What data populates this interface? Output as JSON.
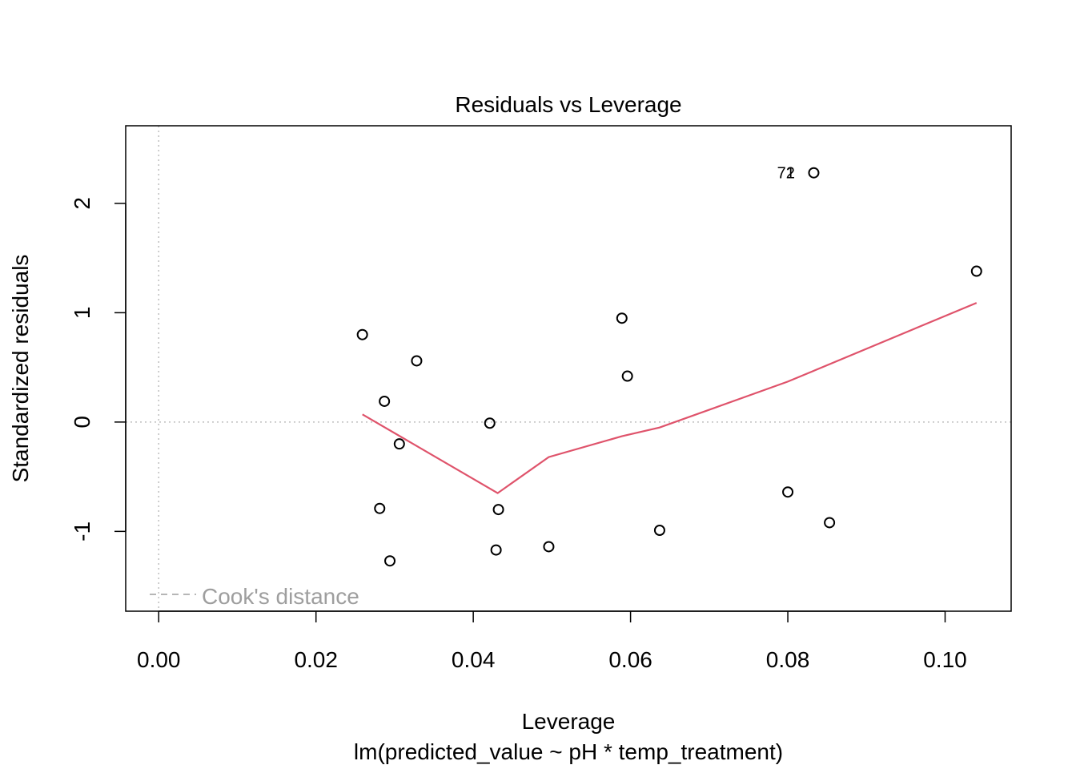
{
  "chart_data": {
    "type": "scatter",
    "title": "Residuals vs Leverage",
    "xlabel": "Leverage",
    "subtitle": "lm(predicted_value ~ pH * temp_treatment)",
    "ylabel": "Standardized residuals",
    "xlim": [
      -0.0042,
      0.1084
    ],
    "ylim": [
      -1.73,
      2.71
    ],
    "x_ticks": [
      {
        "value": 0.0,
        "label": "0.00"
      },
      {
        "value": 0.02,
        "label": "0.02"
      },
      {
        "value": 0.04,
        "label": "0.04"
      },
      {
        "value": 0.06,
        "label": "0.06"
      },
      {
        "value": 0.08,
        "label": "0.08"
      },
      {
        "value": 0.1,
        "label": "0.10"
      }
    ],
    "y_ticks": [
      {
        "value": -1,
        "label": "-1"
      },
      {
        "value": 0,
        "label": "0"
      },
      {
        "value": 1,
        "label": "1"
      },
      {
        "value": 2,
        "label": "2"
      }
    ],
    "points": [
      {
        "x": 0.0259,
        "y": 0.8
      },
      {
        "x": 0.0287,
        "y": 0.19
      },
      {
        "x": 0.0328,
        "y": 0.56
      },
      {
        "x": 0.0306,
        "y": -0.2
      },
      {
        "x": 0.0281,
        "y": -0.79
      },
      {
        "x": 0.0294,
        "y": -1.27
      },
      {
        "x": 0.0421,
        "y": -0.01
      },
      {
        "x": 0.0432,
        "y": -0.8
      },
      {
        "x": 0.0429,
        "y": -1.17
      },
      {
        "x": 0.0496,
        "y": -1.14
      },
      {
        "x": 0.0589,
        "y": 0.95
      },
      {
        "x": 0.0596,
        "y": 0.42
      },
      {
        "x": 0.0637,
        "y": -0.99
      },
      {
        "x": 0.08,
        "y": -0.64
      },
      {
        "x": 0.0833,
        "y": 2.28
      },
      {
        "x": 0.0853,
        "y": -0.92
      },
      {
        "x": 0.104,
        "y": 1.38
      }
    ],
    "point_labels": [
      {
        "x": 0.0809,
        "y": 2.28,
        "label": "72"
      },
      {
        "x": 0.0809,
        "y": 2.28,
        "label": "1"
      }
    ],
    "smooth": {
      "name": "smooth",
      "color": "#DF536B",
      "points": [
        {
          "x": 0.0259,
          "y": 0.07
        },
        {
          "x": 0.0431,
          "y": -0.65
        },
        {
          "x": 0.0496,
          "y": -0.32
        },
        {
          "x": 0.0589,
          "y": -0.13
        },
        {
          "x": 0.0637,
          "y": -0.05
        },
        {
          "x": 0.08,
          "y": 0.37
        },
        {
          "x": 0.104,
          "y": 1.09
        }
      ]
    },
    "reference_lines": {
      "h": 0,
      "v": 0,
      "color": "#BEBEBE",
      "style": "dotted"
    },
    "legend": {
      "placement": "bottom-left",
      "entries": [
        {
          "label": "Cook's distance",
          "color": "#9E9E9E",
          "line": "dashed"
        }
      ]
    },
    "grid": false
  }
}
